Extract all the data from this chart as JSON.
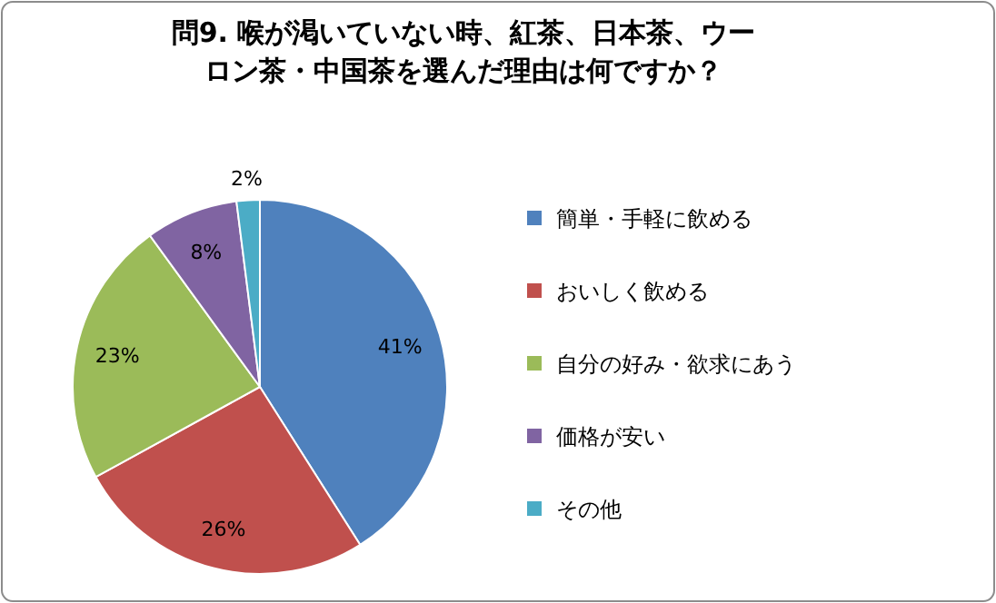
{
  "chart_data": {
    "type": "pie",
    "title": "問9. 喉が渇いていない時、紅茶、日本茶、ウーロン茶・中国茶を選んだ理由は何ですか？",
    "categories": [
      "簡単・手軽に飲める",
      "おいしく飲める",
      "自分の好み・欲求にあう",
      "価格が安い",
      "その他"
    ],
    "values": [
      41,
      26,
      23,
      8,
      2
    ],
    "colors": [
      "#4f81bd",
      "#c0504d",
      "#9bbb59",
      "#8064a2",
      "#4bacc6"
    ],
    "value_labels": [
      "41%",
      "26%",
      "23%",
      "8%",
      "2%"
    ],
    "legend": "right"
  }
}
